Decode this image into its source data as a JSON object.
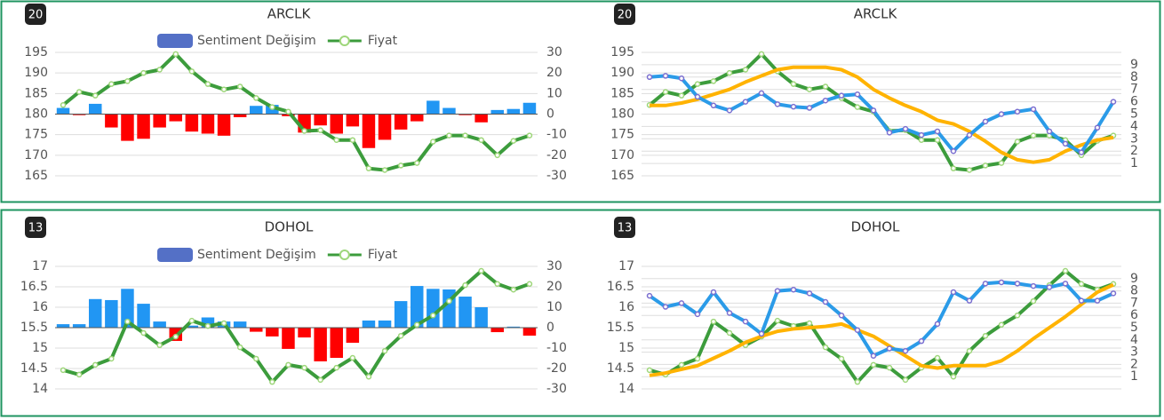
{
  "chart_data": [
    {
      "type": "combo",
      "badge": "20",
      "title": "ARCLK",
      "legend": true,
      "grid": true,
      "ylim": [
        165,
        195
      ],
      "yticks": [
        165,
        170,
        175,
        180,
        185,
        190,
        195
      ],
      "y2lim": [
        -30,
        30
      ],
      "y2ticks": [
        -30,
        -20,
        -10,
        0,
        10,
        20,
        30
      ],
      "series": [
        {
          "name": "Sentiment Değişim",
          "type": "bar",
          "axis": "y2",
          "color": "#5470c6",
          "positive_color": "#2196f3",
          "negative_color": "#ff0000",
          "values": [
            3,
            -0.5,
            5,
            -6.5,
            -13,
            -12,
            -6.5,
            -3.5,
            -8.5,
            -9.5,
            -10.5,
            -1.5,
            4,
            4.5,
            -1,
            -9,
            -5.5,
            -9.5,
            -6,
            -16.5,
            -12.5,
            -7.5,
            -3.5,
            6.5,
            3,
            -0.5,
            -4,
            2,
            2.5,
            5.5
          ]
        },
        {
          "name": "Fiyat",
          "type": "line",
          "axis": "y",
          "color": "#3c9c3c",
          "marker_color": "#9ed67a",
          "values": [
            182.2,
            185.4,
            184.5,
            187.3,
            188,
            190,
            190.8,
            194.6,
            190.4,
            187.3,
            186,
            186.7,
            183.9,
            181.7,
            180.6,
            175.9,
            176.1,
            173.7,
            173.7,
            166.8,
            166.4,
            167.5,
            168.1,
            173.3,
            174.8,
            174.8,
            173.7,
            170,
            173.5,
            174.8
          ]
        }
      ]
    },
    {
      "type": "line",
      "badge": "20",
      "title": "ARCLK",
      "legend": false,
      "grid": true,
      "ylim": [
        165,
        195
      ],
      "yticks": [
        165,
        170,
        175,
        180,
        185,
        190,
        195
      ],
      "y2lim": [
        0,
        10
      ],
      "y2ticks": [
        1,
        2,
        3,
        4,
        5,
        6,
        7,
        8,
        9
      ],
      "series": [
        {
          "type": "line",
          "axis": "y",
          "color": "#3c9c3c",
          "marker_color": "#9ed67a",
          "values": [
            182.2,
            185.4,
            184.5,
            187.3,
            188,
            190,
            190.8,
            194.6,
            190.4,
            187.3,
            186,
            186.7,
            183.9,
            181.7,
            180.6,
            175.9,
            176.1,
            173.7,
            173.7,
            166.8,
            166.4,
            167.5,
            168.1,
            173.3,
            174.8,
            174.8,
            173.7,
            170,
            173.5,
            174.8
          ]
        },
        {
          "type": "line",
          "axis": "y2",
          "color": "#ffb300",
          "values": [
            5.7,
            5.7,
            5.9,
            6.2,
            6.6,
            7.0,
            7.6,
            8.1,
            8.6,
            8.8,
            8.8,
            8.8,
            8.6,
            8.0,
            7.0,
            6.3,
            5.7,
            5.2,
            4.5,
            4.2,
            3.6,
            2.8,
            1.9,
            1.3,
            1.1,
            1.3,
            2.0,
            2.5,
            2.9,
            3.1
          ]
        },
        {
          "type": "line",
          "axis": "y2",
          "color": "#2b9be8",
          "marker_color": "#7b6fd0",
          "values": [
            8.0,
            8.1,
            7.9,
            6.4,
            5.7,
            5.3,
            6.0,
            6.7,
            5.8,
            5.6,
            5.5,
            6.1,
            6.5,
            6.6,
            5.3,
            3.5,
            3.8,
            3.3,
            3.6,
            2.0,
            3.3,
            4.4,
            5.0,
            5.2,
            5.4,
            3.6,
            2.6,
            1.9,
            3.9,
            6.0
          ]
        }
      ]
    },
    {
      "type": "combo",
      "badge": "13",
      "title": "DOHOL",
      "legend": true,
      "grid": true,
      "ylim": [
        14,
        17
      ],
      "yticks": [
        14,
        14.5,
        15,
        15.5,
        16,
        16.5,
        17
      ],
      "y2lim": [
        -30,
        30
      ],
      "y2ticks": [
        -30,
        -20,
        -10,
        0,
        10,
        20,
        30
      ],
      "series": [
        {
          "name": "Sentiment Değişim",
          "type": "bar",
          "axis": "y2",
          "color": "#5470c6",
          "positive_color": "#2196f3",
          "negative_color": "#ff0000",
          "values": [
            1.7,
            1.7,
            14,
            13.5,
            19,
            11.7,
            3,
            -6.5,
            1,
            5,
            3,
            3,
            -2,
            -4.3,
            -10.4,
            -4.8,
            -16.5,
            -14.8,
            -7.4,
            3.5,
            3.5,
            13,
            20.4,
            19,
            18.7,
            15.2,
            10,
            -2.2,
            0.5,
            -3.9
          ]
        },
        {
          "name": "Fiyat",
          "type": "line",
          "axis": "y",
          "color": "#3c9c3c",
          "marker_color": "#9ed67a",
          "values": [
            14.46,
            14.35,
            14.59,
            14.74,
            15.65,
            15.37,
            15.07,
            15.28,
            15.67,
            15.54,
            15.61,
            15.02,
            14.74,
            14.17,
            14.59,
            14.52,
            14.22,
            14.52,
            14.76,
            14.3,
            14.93,
            15.3,
            15.57,
            15.8,
            16.15,
            16.54,
            16.89,
            16.57,
            16.43,
            16.57
          ]
        }
      ]
    },
    {
      "type": "line",
      "badge": "13",
      "title": "DOHOL",
      "legend": false,
      "grid": true,
      "ylim": [
        14,
        17
      ],
      "yticks": [
        14,
        14.5,
        15,
        15.5,
        16,
        16.5,
        17
      ],
      "y2lim": [
        0,
        10
      ],
      "y2ticks": [
        1,
        2,
        3,
        4,
        5,
        6,
        7,
        8,
        9
      ],
      "series": [
        {
          "type": "line",
          "axis": "y",
          "color": "#3c9c3c",
          "marker_color": "#9ed67a",
          "values": [
            14.46,
            14.35,
            14.59,
            14.74,
            15.65,
            15.37,
            15.07,
            15.28,
            15.67,
            15.54,
            15.61,
            15.02,
            14.74,
            14.17,
            14.59,
            14.52,
            14.22,
            14.52,
            14.76,
            14.3,
            14.93,
            15.3,
            15.57,
            15.8,
            16.15,
            16.54,
            16.89,
            16.57,
            16.43,
            16.57
          ]
        },
        {
          "type": "line",
          "axis": "y2",
          "color": "#ffb300",
          "values": [
            1.1,
            1.3,
            1.6,
            1.9,
            2.5,
            3.1,
            3.8,
            4.3,
            4.7,
            4.9,
            5.0,
            5.1,
            5.3,
            4.8,
            4.3,
            3.5,
            2.7,
            1.9,
            1.7,
            1.9,
            1.9,
            1.9,
            2.3,
            3.1,
            4.1,
            5.0,
            5.9,
            6.9,
            7.9,
            8.5
          ]
        },
        {
          "type": "line",
          "axis": "y2",
          "color": "#2b9be8",
          "marker_color": "#7b6fd0",
          "values": [
            7.6,
            6.7,
            7.0,
            6.1,
            7.9,
            6.2,
            5.5,
            4.5,
            8.0,
            8.1,
            7.8,
            7.1,
            6.0,
            4.8,
            2.7,
            3.3,
            3.1,
            3.9,
            5.3,
            7.9,
            7.2,
            8.6,
            8.7,
            8.6,
            8.4,
            8.3,
            8.6,
            7.2,
            7.2,
            7.8
          ]
        }
      ]
    }
  ]
}
